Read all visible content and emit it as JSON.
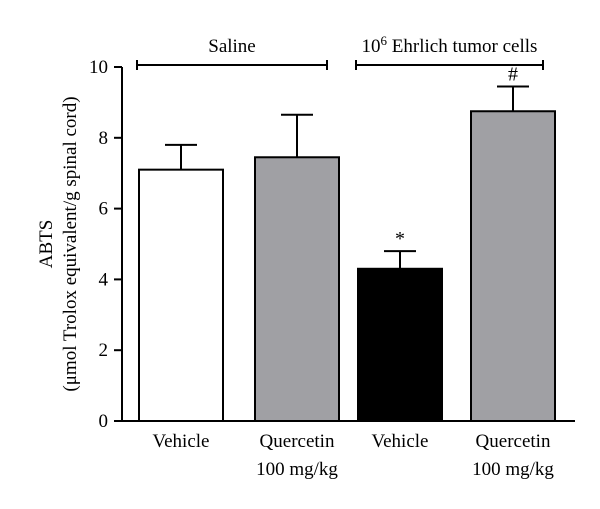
{
  "chart_data": {
    "type": "bar",
    "ylabel_line1": "ABTS",
    "ylabel_line2": "(μmol Trolox equivalent/g spinal cord)",
    "ylim": [
      0,
      10
    ],
    "yticks": [
      0,
      2,
      4,
      6,
      8,
      10
    ],
    "categories": [
      {
        "line1": "Vehicle",
        "line2": ""
      },
      {
        "line1": "Quercetin",
        "line2": "100 mg/kg"
      },
      {
        "line1": "Vehicle",
        "line2": ""
      },
      {
        "line1": "Quercetin",
        "line2": "100 mg/kg"
      }
    ],
    "values": [
      7.1,
      7.45,
      4.3,
      8.75
    ],
    "errors": [
      0.7,
      1.2,
      0.5,
      0.7
    ],
    "colors": [
      "#ffffff",
      "#a0a0a4",
      "#000000",
      "#a0a0a4"
    ],
    "annotations": [
      "",
      "",
      "*",
      "#"
    ],
    "groups": [
      {
        "label": "Saline",
        "label_sup": "",
        "label_main": "Saline",
        "from": 0,
        "to": 1
      },
      {
        "label": "10^6 Ehrlich tumor cells",
        "label_sup": "6",
        "label_main": " Ehrlich tumor cells",
        "label_base": "10",
        "from": 2,
        "to": 3
      }
    ]
  }
}
